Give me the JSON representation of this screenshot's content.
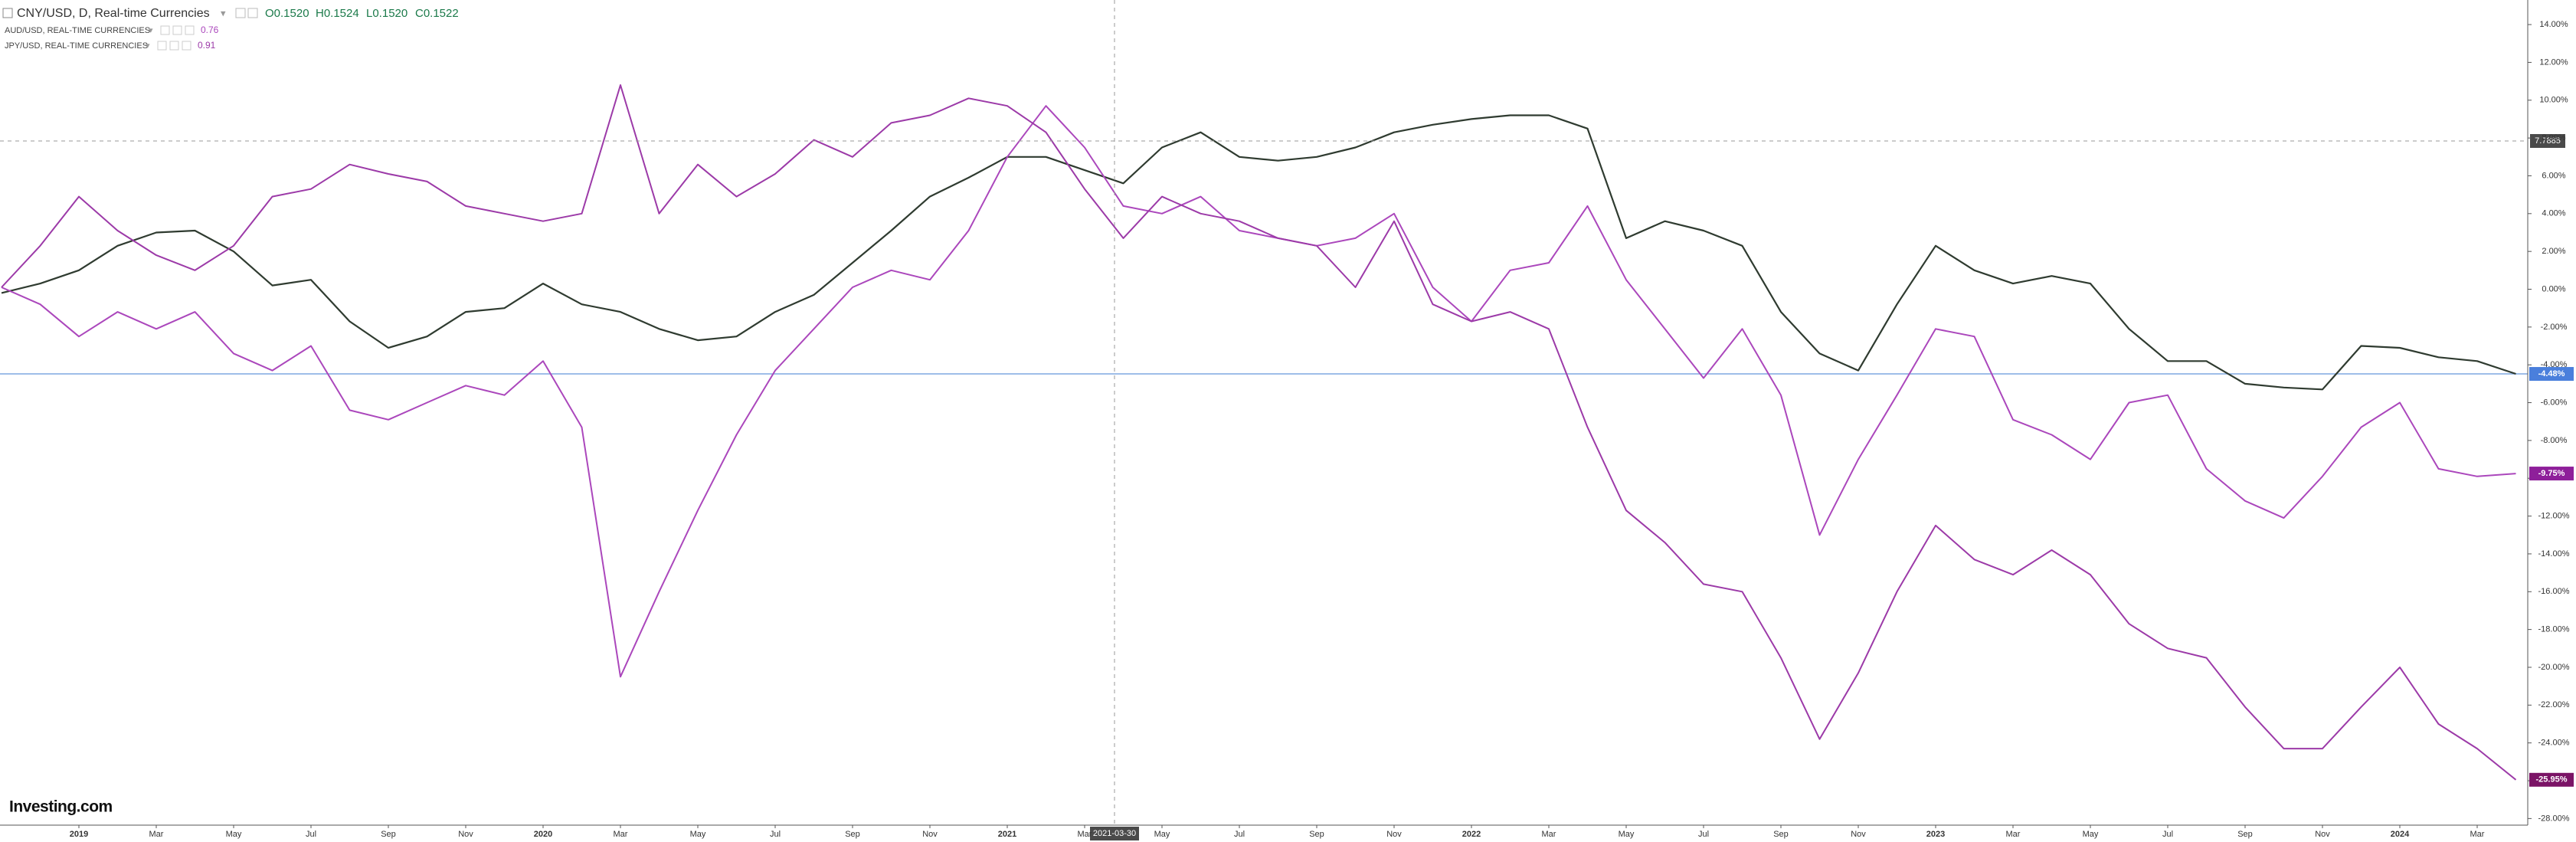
{
  "header": {
    "title": "CNY/USD, D, Real-time Currencies",
    "ohlc": [
      "O0.1520",
      "H0.1524",
      "L0.1520",
      "C0.1522"
    ]
  },
  "legend": [
    {
      "name": "AUD/USD, REAL-TIME CURRENCIES",
      "value": 0.76
    },
    {
      "name": "JPY/USD, REAL-TIME CURRENCIES",
      "value": 0.91
    }
  ],
  "crosshair": {
    "x_label": "2021-03-30",
    "y_label": "7.7885"
  },
  "logo": "Investing.com",
  "chart_data": {
    "type": "line",
    "categories": [
      null,
      null,
      "2019",
      null,
      "Mar",
      null,
      "May",
      null,
      "Jul",
      null,
      "Sep",
      null,
      "Nov",
      null,
      "2020",
      null,
      "Mar",
      null,
      "May",
      null,
      "Jul",
      null,
      "Sep",
      null,
      "Nov",
      null,
      "2021",
      null,
      "Mar",
      null,
      "May",
      null,
      "Jul",
      null,
      "Sep",
      null,
      "Nov",
      null,
      "2022",
      null,
      "Mar",
      null,
      "May",
      null,
      "Jul",
      null,
      "Sep",
      null,
      "Nov",
      null,
      "2023",
      null,
      "Mar",
      null,
      "May",
      null,
      "Jul",
      null,
      "Sep",
      null,
      "Nov",
      null,
      "2024",
      null,
      "Mar",
      null
    ],
    "series": [
      {
        "name": "CNY/USD, D, Real-time Currencies",
        "color": "#2f3b30",
        "label_color": "#4a7fdc",
        "values": [
          -0.2,
          0.3,
          1.0,
          2.3,
          3.0,
          3.1,
          2.0,
          0.2,
          0.5,
          -1.7,
          -3.1,
          -2.5,
          -1.2,
          -1.0,
          0.3,
          -0.8,
          -1.2,
          -2.1,
          -2.7,
          -2.5,
          -1.2,
          -0.3,
          1.4,
          3.1,
          4.9,
          5.9,
          7.0,
          7.0,
          6.3,
          5.6,
          7.5,
          8.3,
          7.0,
          6.8,
          7.0,
          7.5,
          8.3,
          8.7,
          9.0,
          9.2,
          9.2,
          8.5,
          2.7,
          3.6,
          3.1,
          2.3,
          -1.2,
          -3.4,
          -4.3,
          -0.8,
          2.3,
          1.0,
          0.3,
          0.7,
          0.3,
          -2.1,
          -3.8,
          -3.8,
          -5.0,
          -5.2,
          -5.3,
          -3.0,
          -3.1,
          -3.6,
          -3.8,
          -4.48
        ],
        "value_labels": [
          null,
          null,
          null,
          null,
          null,
          null,
          null,
          null,
          null,
          null,
          null,
          null,
          null,
          null,
          null,
          null,
          null,
          null,
          null,
          null,
          null,
          null,
          null,
          null,
          null,
          null,
          null,
          null,
          null,
          null,
          null,
          null,
          null,
          null,
          null,
          null,
          null,
          null,
          null,
          null,
          null,
          null,
          null,
          null,
          null,
          null,
          null,
          null,
          null,
          null,
          null,
          null,
          null,
          null,
          null,
          null,
          null,
          null,
          null,
          null,
          null,
          null,
          null,
          null,
          null,
          "-4.48%"
        ]
      },
      {
        "name": "AUD/USD, REAL-TIME CURRENCIES",
        "color": "#ab47bc",
        "label_color": "#8e1f9a",
        "values": [
          0.1,
          -0.8,
          -2.5,
          -1.2,
          -2.1,
          -1.2,
          -3.4,
          -4.3,
          -3.0,
          -6.4,
          -6.9,
          -6.0,
          -5.1,
          -5.6,
          -3.8,
          -7.3,
          -20.5,
          -16.0,
          -11.7,
          -7.7,
          -4.3,
          -2.1,
          0.1,
          1.0,
          0.5,
          3.1,
          7.0,
          9.7,
          7.5,
          4.4,
          4.0,
          4.9,
          3.1,
          2.7,
          2.3,
          2.7,
          4.0,
          0.1,
          -1.7,
          1.0,
          1.4,
          4.4,
          0.5,
          -2.1,
          -4.7,
          -2.1,
          -5.6,
          -13.0,
          -9.0,
          -5.6,
          -2.1,
          -2.5,
          -6.9,
          -7.7,
          -9.0,
          -6.0,
          -5.6,
          -9.5,
          -11.2,
          -12.1,
          -9.9,
          -7.3,
          -6.0,
          -9.5,
          -9.9,
          -9.75
        ],
        "value_labels": [
          null,
          null,
          null,
          null,
          null,
          null,
          null,
          null,
          null,
          null,
          null,
          null,
          null,
          null,
          null,
          null,
          null,
          null,
          null,
          null,
          null,
          null,
          null,
          null,
          null,
          null,
          null,
          null,
          null,
          null,
          null,
          null,
          null,
          null,
          null,
          null,
          null,
          null,
          null,
          null,
          null,
          null,
          null,
          null,
          null,
          null,
          null,
          null,
          null,
          null,
          null,
          null,
          null,
          null,
          null,
          null,
          null,
          null,
          null,
          null,
          null,
          null,
          null,
          null,
          null,
          "-9.75%"
        ]
      },
      {
        "name": "JPY/USD, REAL-TIME CURRENCIES",
        "color": "#9c3aa8",
        "label_color": "#7b1466",
        "values": [
          0.1,
          2.3,
          4.9,
          3.1,
          1.8,
          1.0,
          2.3,
          4.9,
          5.3,
          6.6,
          6.1,
          5.7,
          4.4,
          4.0,
          3.6,
          4.0,
          10.8,
          4.0,
          6.6,
          4.9,
          6.1,
          7.9,
          7.0,
          8.8,
          9.2,
          10.1,
          9.7,
          8.3,
          5.3,
          2.7,
          4.9,
          4.0,
          3.6,
          2.7,
          2.3,
          0.1,
          3.6,
          -0.8,
          -1.7,
          -1.2,
          -2.1,
          -7.3,
          -11.7,
          -13.4,
          -15.6,
          -16.0,
          -19.5,
          -23.8,
          -20.3,
          -16.0,
          -12.5,
          -14.3,
          -15.1,
          -13.8,
          -15.1,
          -17.7,
          -19.0,
          -19.5,
          -22.1,
          -24.3,
          -24.3,
          -22.1,
          -20.0,
          -23.0,
          -24.3,
          -25.95
        ],
        "value_labels": [
          null,
          null,
          null,
          null,
          null,
          null,
          null,
          null,
          null,
          null,
          null,
          null,
          null,
          null,
          null,
          null,
          null,
          null,
          null,
          null,
          null,
          null,
          null,
          null,
          null,
          null,
          null,
          null,
          null,
          null,
          null,
          null,
          null,
          null,
          null,
          null,
          null,
          null,
          null,
          null,
          null,
          null,
          null,
          null,
          null,
          null,
          null,
          null,
          null,
          null,
          null,
          null,
          null,
          null,
          null,
          null,
          null,
          null,
          null,
          null,
          null,
          null,
          null,
          null,
          null,
          "-25.95%"
        ]
      }
    ],
    "ylim": [
      -28.35,
      15.3
    ],
    "yticks": [
      {
        "value": 14,
        "label": "14.00%"
      },
      {
        "value": 12,
        "label": "12.00%"
      },
      {
        "value": 10,
        "label": "10.00%"
      },
      {
        "value": 8,
        "label": "8.00%"
      },
      {
        "value": 6,
        "label": "6.00%"
      },
      {
        "value": 4,
        "label": "4.00%"
      },
      {
        "value": 2,
        "label": "2.00%"
      },
      {
        "value": 0,
        "label": "0.00%"
      },
      {
        "value": -2,
        "label": "-2.00%"
      },
      {
        "value": -4,
        "label": "-4.00%"
      },
      {
        "value": -6,
        "label": "-6.00%"
      },
      {
        "value": -8,
        "label": "-8.00%"
      },
      {
        "value": -10,
        "label": "-10.00%"
      },
      {
        "value": -12,
        "label": "-12.00%"
      },
      {
        "value": -14,
        "label": "-14.00%"
      },
      {
        "value": -16,
        "label": "-16.00%"
      },
      {
        "value": -18,
        "label": "-18.00%"
      },
      {
        "value": -20,
        "label": "-20.00%"
      },
      {
        "value": -22,
        "label": "-22.00%"
      },
      {
        "value": -24,
        "label": "-24.00%"
      },
      {
        "value": -26,
        "label": "-26.00%"
      },
      {
        "value": -28,
        "label": "-28.00%"
      }
    ],
    "grid": false
  }
}
